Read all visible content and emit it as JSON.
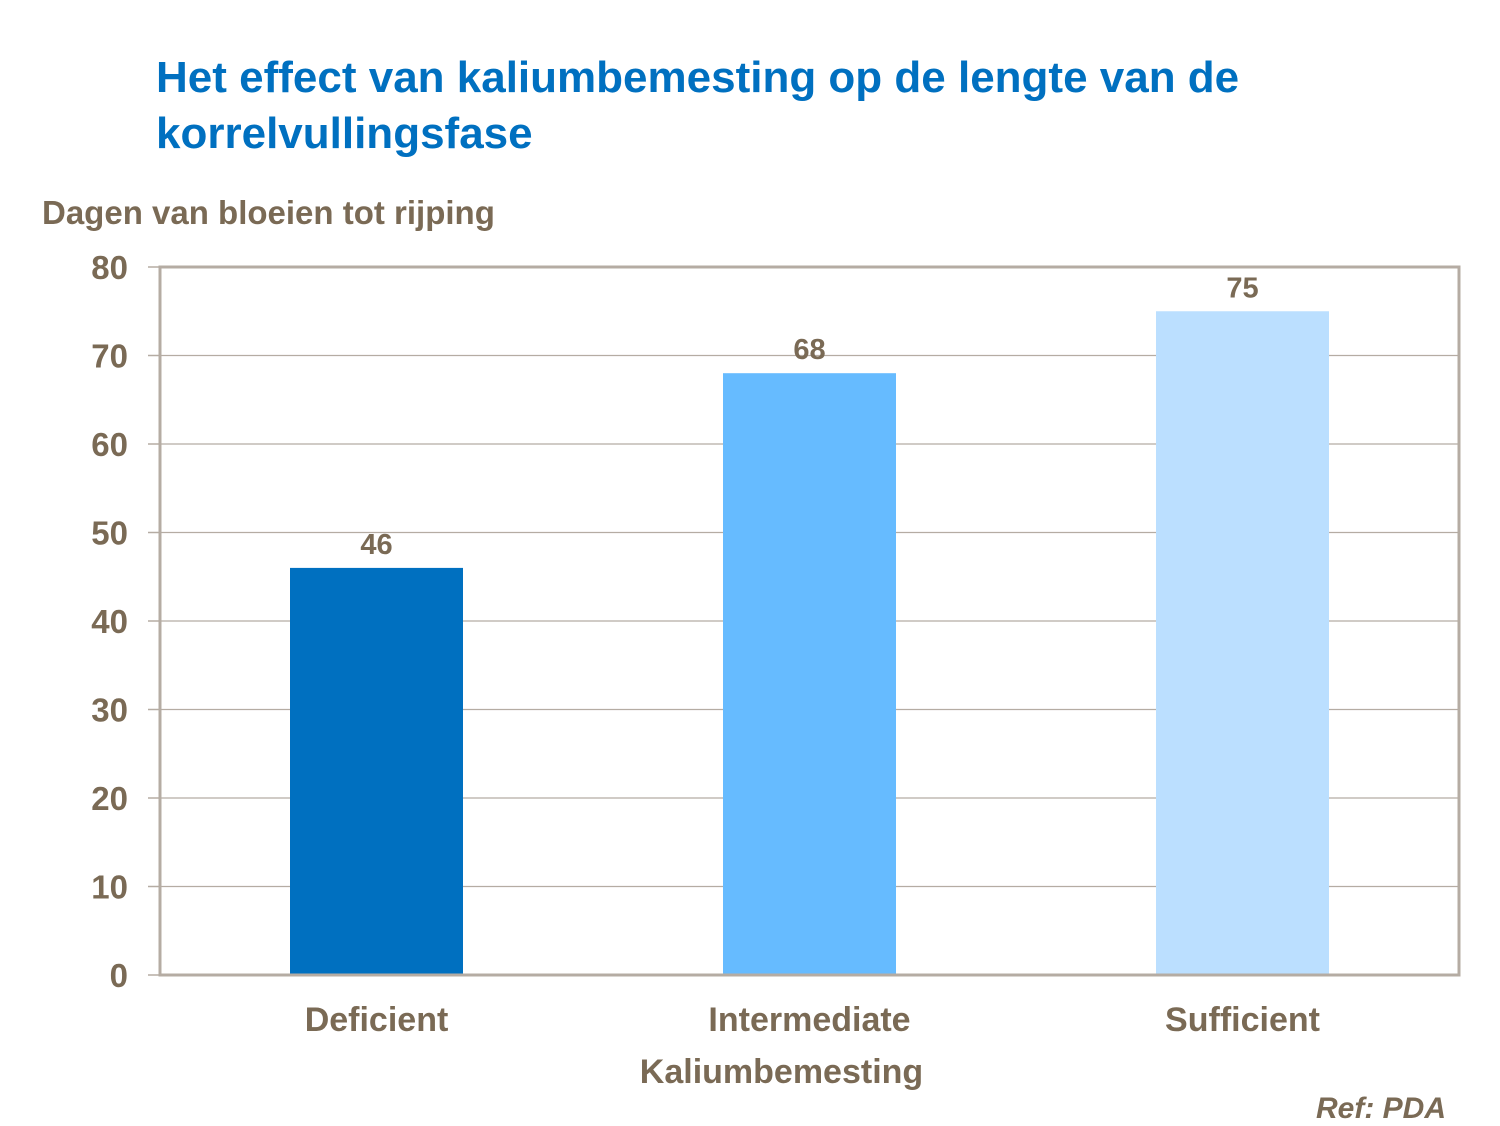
{
  "chart_data": {
    "type": "bar",
    "title": "Het effect van kaliumbemesting op de lengte van de korrelvullingsfase",
    "ylabel": "Dagen van bloeien tot rijping",
    "xlabel": "Kaliumbemesting",
    "categories": [
      "Deficient",
      "Intermediate",
      "Sufficient"
    ],
    "values": [
      46,
      68,
      75
    ],
    "data_labels": [
      "46",
      "68",
      "75"
    ],
    "colors": [
      "#0070C0",
      "#66BBFF",
      "#BBDFFF"
    ],
    "ylim": [
      0,
      80
    ],
    "yticks": [
      0,
      10,
      20,
      30,
      40,
      50,
      60,
      70,
      80
    ],
    "grid": true,
    "legend": "none"
  },
  "footer": {
    "ref": "Ref: PDA"
  }
}
